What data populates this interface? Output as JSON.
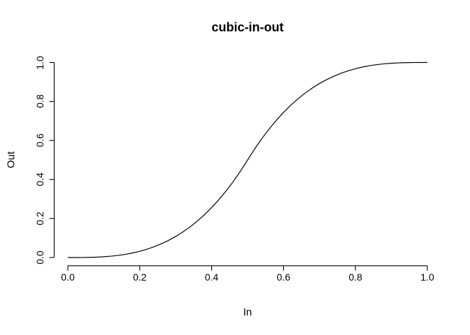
{
  "figure": {
    "background_color": "#ffffff",
    "foreground_color": "#000000"
  },
  "chart_data": {
    "type": "line",
    "title": "cubic-in-out",
    "xlabel": "In",
    "ylabel": "Out",
    "xlim": [
      0,
      1
    ],
    "ylim": [
      0,
      1
    ],
    "grid": false,
    "legend": "none",
    "box": "axes-only",
    "line_color": "#000000",
    "axis_color": "#000000",
    "x_tick_values": [
      0.0,
      0.2,
      0.4,
      0.6,
      0.8,
      1.0
    ],
    "x_tick_labels": [
      "0.0",
      "0.2",
      "0.4",
      "0.6",
      "0.8",
      "1.0"
    ],
    "y_tick_values": [
      0.0,
      0.2,
      0.4,
      0.6,
      0.8,
      1.0
    ],
    "y_tick_labels": [
      "0.0",
      "0.2",
      "0.4",
      "0.6",
      "0.8",
      "1.0"
    ],
    "x": [
      0,
      0.02,
      0.04,
      0.06,
      0.08,
      0.1,
      0.12,
      0.14,
      0.16,
      0.18,
      0.2,
      0.22,
      0.24,
      0.26,
      0.28,
      0.3,
      0.32,
      0.34,
      0.36,
      0.38,
      0.4,
      0.42,
      0.44,
      0.46,
      0.48,
      0.5,
      0.52,
      0.54,
      0.56,
      0.58,
      0.6,
      0.62,
      0.64,
      0.66,
      0.68,
      0.7,
      0.72,
      0.74,
      0.76,
      0.78,
      0.8,
      0.82,
      0.84,
      0.86,
      0.88,
      0.9,
      0.92,
      0.94,
      0.96,
      0.98,
      1
    ],
    "y": [
      0,
      3.2e-05,
      0.000256,
      0.000864,
      0.002048,
      0.004,
      0.006912,
      0.010976,
      0.016384,
      0.023328,
      0.032,
      0.042592,
      0.055296,
      0.070304,
      0.087808,
      0.108,
      0.131072,
      0.157216,
      0.186624,
      0.219488,
      0.256,
      0.296352,
      0.340736,
      0.389344,
      0.442368,
      0.5,
      0.557632,
      0.610656,
      0.659264,
      0.703648,
      0.744,
      0.780512,
      0.813376,
      0.842784,
      0.868928,
      0.892,
      0.912192,
      0.929696,
      0.944704,
      0.957408,
      0.968,
      0.976672,
      0.983616,
      0.989024,
      0.993088,
      0.996,
      0.997952,
      0.999136,
      0.999744,
      0.999968,
      1
    ]
  }
}
